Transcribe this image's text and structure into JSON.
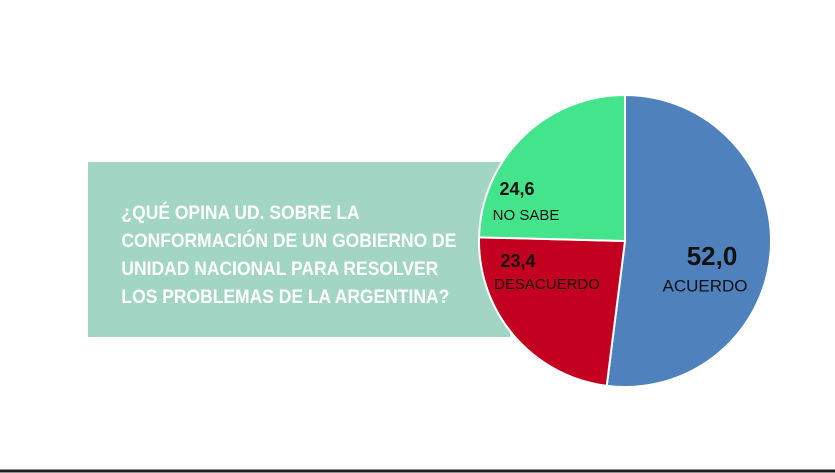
{
  "chart_data": {
    "type": "pie",
    "title": [
      "¿QUÉ OPINA UD. SOBRE LA",
      "CONFORMACIÓN DE UN GOBIERNO DE",
      "UNIDAD NACIONAL PARA RESOLVER",
      "LOS PROBLEMAS DE LA ARGENTINA?"
    ],
    "categories": [
      "ACUERDO",
      "DESACUERDO",
      "NO SABE"
    ],
    "values": [
      52.0,
      23.4,
      24.6
    ],
    "value_labels": [
      "52,0",
      "23,4",
      "24,6"
    ],
    "colors": [
      "#4f81bd",
      "#c3001f",
      "#44e48d"
    ]
  }
}
